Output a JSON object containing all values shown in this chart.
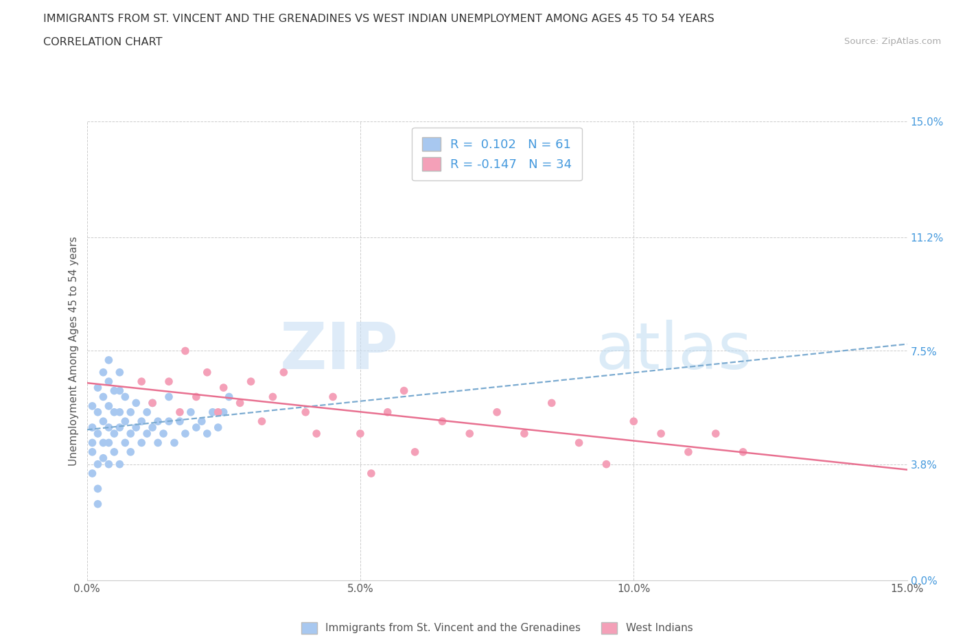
{
  "title": "IMMIGRANTS FROM ST. VINCENT AND THE GRENADINES VS WEST INDIAN UNEMPLOYMENT AMONG AGES 45 TO 54 YEARS",
  "subtitle": "CORRELATION CHART",
  "source": "Source: ZipAtlas.com",
  "ylabel": "Unemployment Among Ages 45 to 54 years",
  "xlim": [
    0.0,
    0.15
  ],
  "ylim": [
    0.0,
    0.15
  ],
  "xtick_labels": [
    "0.0%",
    "5.0%",
    "10.0%",
    "15.0%"
  ],
  "xtick_vals": [
    0.0,
    0.05,
    0.1,
    0.15
  ],
  "ytick_labels": [
    "0.0%",
    "3.8%",
    "7.5%",
    "11.2%",
    "15.0%"
  ],
  "ytick_vals": [
    0.0,
    0.038,
    0.075,
    0.112,
    0.15
  ],
  "blue_R": "0.102",
  "blue_N": "61",
  "pink_R": "-0.147",
  "pink_N": "34",
  "blue_color": "#a8c8f0",
  "pink_color": "#f4a0b8",
  "blue_line_color": "#7aaad0",
  "pink_line_color": "#e87090",
  "watermark_zip": "ZIP",
  "watermark_atlas": "atlas",
  "legend1_label": "Immigrants from St. Vincent and the Grenadines",
  "legend2_label": "West Indians",
  "blue_scatter_x": [
    0.001,
    0.001,
    0.001,
    0.001,
    0.001,
    0.002,
    0.002,
    0.002,
    0.002,
    0.002,
    0.002,
    0.003,
    0.003,
    0.003,
    0.003,
    0.003,
    0.004,
    0.004,
    0.004,
    0.004,
    0.004,
    0.004,
    0.005,
    0.005,
    0.005,
    0.005,
    0.006,
    0.006,
    0.006,
    0.006,
    0.006,
    0.007,
    0.007,
    0.007,
    0.008,
    0.008,
    0.008,
    0.009,
    0.009,
    0.01,
    0.01,
    0.011,
    0.011,
    0.012,
    0.012,
    0.013,
    0.013,
    0.014,
    0.015,
    0.015,
    0.016,
    0.017,
    0.018,
    0.019,
    0.02,
    0.021,
    0.022,
    0.023,
    0.024,
    0.025,
    0.026
  ],
  "blue_scatter_y": [
    0.035,
    0.042,
    0.05,
    0.057,
    0.045,
    0.038,
    0.048,
    0.055,
    0.063,
    0.03,
    0.025,
    0.04,
    0.052,
    0.06,
    0.068,
    0.045,
    0.038,
    0.05,
    0.057,
    0.065,
    0.072,
    0.045,
    0.042,
    0.055,
    0.062,
    0.048,
    0.038,
    0.05,
    0.055,
    0.062,
    0.068,
    0.045,
    0.052,
    0.06,
    0.048,
    0.055,
    0.042,
    0.05,
    0.058,
    0.045,
    0.052,
    0.048,
    0.055,
    0.05,
    0.058,
    0.045,
    0.052,
    0.048,
    0.052,
    0.06,
    0.045,
    0.052,
    0.048,
    0.055,
    0.05,
    0.052,
    0.048,
    0.055,
    0.05,
    0.055,
    0.06
  ],
  "pink_scatter_x": [
    0.01,
    0.012,
    0.015,
    0.017,
    0.018,
    0.02,
    0.022,
    0.024,
    0.025,
    0.028,
    0.03,
    0.032,
    0.034,
    0.036,
    0.04,
    0.042,
    0.045,
    0.05,
    0.052,
    0.055,
    0.058,
    0.06,
    0.065,
    0.07,
    0.075,
    0.08,
    0.085,
    0.09,
    0.095,
    0.1,
    0.105,
    0.11,
    0.115,
    0.12
  ],
  "pink_scatter_y": [
    0.065,
    0.058,
    0.065,
    0.055,
    0.075,
    0.06,
    0.068,
    0.055,
    0.063,
    0.058,
    0.065,
    0.052,
    0.06,
    0.068,
    0.055,
    0.048,
    0.06,
    0.048,
    0.035,
    0.055,
    0.062,
    0.042,
    0.052,
    0.048,
    0.055,
    0.048,
    0.058,
    0.045,
    0.038,
    0.052,
    0.048,
    0.042,
    0.048,
    0.042
  ]
}
